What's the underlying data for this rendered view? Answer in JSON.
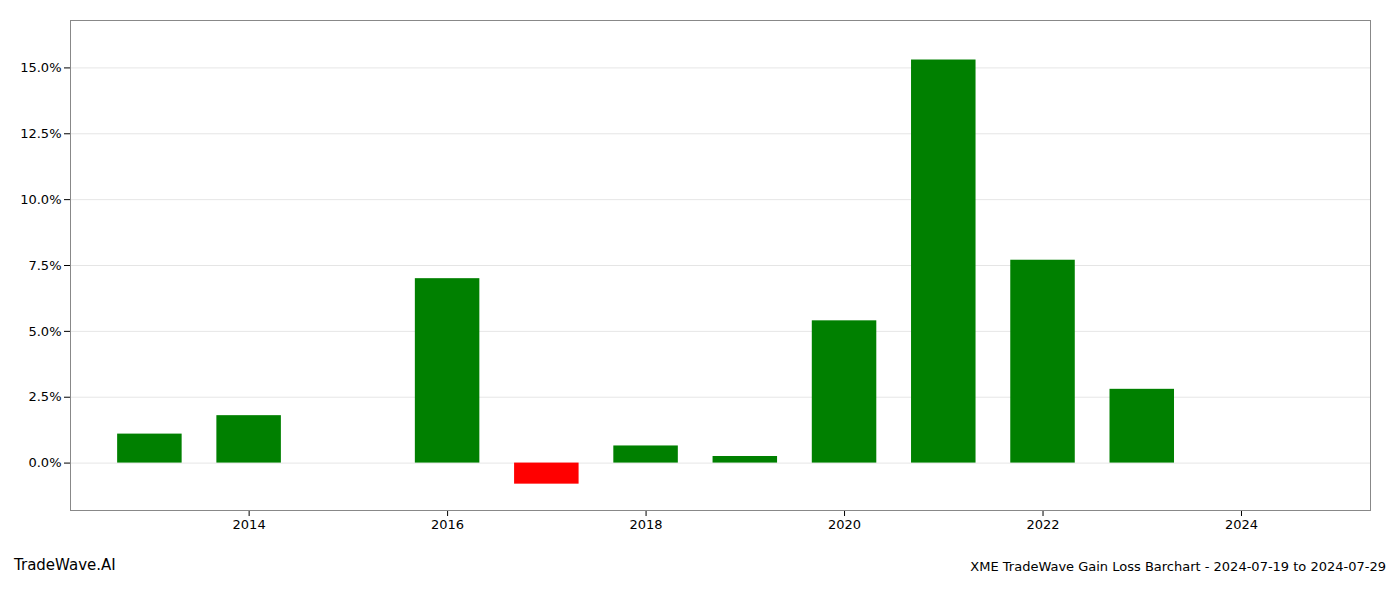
{
  "chart_data": {
    "type": "bar",
    "title": "XME TradeWave Gain Loss Barchart - 2024-07-19 to 2024-07-29",
    "annotations": [
      "TradeWave.AI"
    ],
    "x": [
      2013,
      2014,
      2016,
      2017,
      2018,
      2019,
      2020,
      2021,
      2022,
      2023
    ],
    "values": [
      0.011,
      0.018,
      0.07,
      -0.008,
      0.0065,
      0.0025,
      0.054,
      0.153,
      0.077,
      0.028
    ],
    "colors": [
      "#008000",
      "#008000",
      "#008000",
      "#ff0000",
      "#008000",
      "#008000",
      "#008000",
      "#008000",
      "#008000",
      "#008000"
    ],
    "xlim": [
      2012.2,
      2025.3
    ],
    "xticks": [
      2014,
      2016,
      2018,
      2020,
      2022,
      2024
    ],
    "ylim": [
      -0.018,
      0.168
    ],
    "yticks": [
      {
        "value": 0.0,
        "label": "0.0%"
      },
      {
        "value": 0.025,
        "label": "2.5%"
      },
      {
        "value": 0.05,
        "label": "5.0%"
      },
      {
        "value": 0.075,
        "label": "7.5%"
      },
      {
        "value": 0.1,
        "label": "10.0%"
      },
      {
        "value": 0.125,
        "label": "12.5%"
      },
      {
        "value": 0.15,
        "label": "15.0%"
      }
    ],
    "grid": true
  }
}
